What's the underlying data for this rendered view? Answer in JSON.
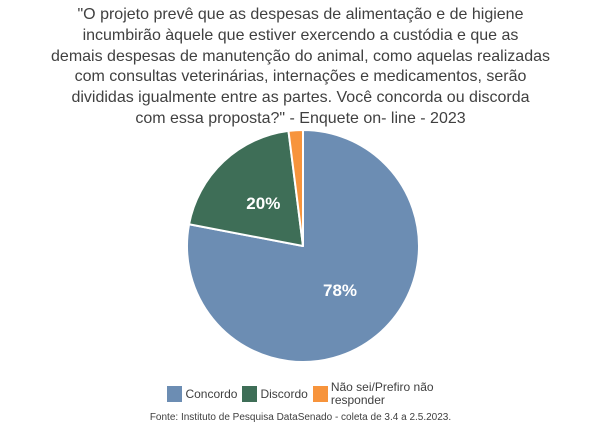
{
  "title": {
    "text": "\"O projeto prevê que as despesas de alimentação e de higiene\nincumbirão àquele que estiver exercendo a custódia e que as\ndemais despesas de manutenção do animal, como aquelas realizadas\ncom consultas veterinárias, internações e medicamentos, serão\ndivididas igualmente entre as partes. Você concorda ou discorda\ncom essa proposta?\" - Enquete on- line - 2023"
  },
  "chart_data": {
    "type": "pie",
    "title": "\"O projeto prevê que as despesas de alimentação e de higiene incumbirão àquele que estiver exercendo a custódia e que as demais despesas de manutenção do animal, como aquelas realizadas com consultas veterinárias, internações e medicamentos, serão divididas igualmente entre as partes. Você concorda ou discorda com essa proposta?\" - Enquete on- line - 2023",
    "unit": "percent",
    "start_angle_deg": 0,
    "direction": "clockwise",
    "legend_position": "bottom",
    "slices": [
      {
        "label": "Concordo",
        "value": 78,
        "data_label": "78%",
        "color": "#6C8DB3"
      },
      {
        "label": "Discordo",
        "value": 20,
        "data_label": "20%",
        "color": "#3E6E57"
      },
      {
        "label": "Não sei/Prefiro não responder",
        "value": 2,
        "data_label": "",
        "color": "#F7943C"
      }
    ],
    "source": "Fonte: Instituto de Pesquisa DataSenado - coleta de 3.4 a 2.5.2023."
  },
  "legend": {
    "items": [
      {
        "label": "Concordo",
        "color": "#6C8DB3"
      },
      {
        "label": "Discordo",
        "color": "#3E6E57"
      },
      {
        "label": "Não sei/Prefiro não\nresponder",
        "color": "#F7943C"
      }
    ]
  },
  "footer": {
    "source": "Fonte: Instituto de Pesquisa DataSenado - coleta de 3.4 a 2.5.2023."
  }
}
